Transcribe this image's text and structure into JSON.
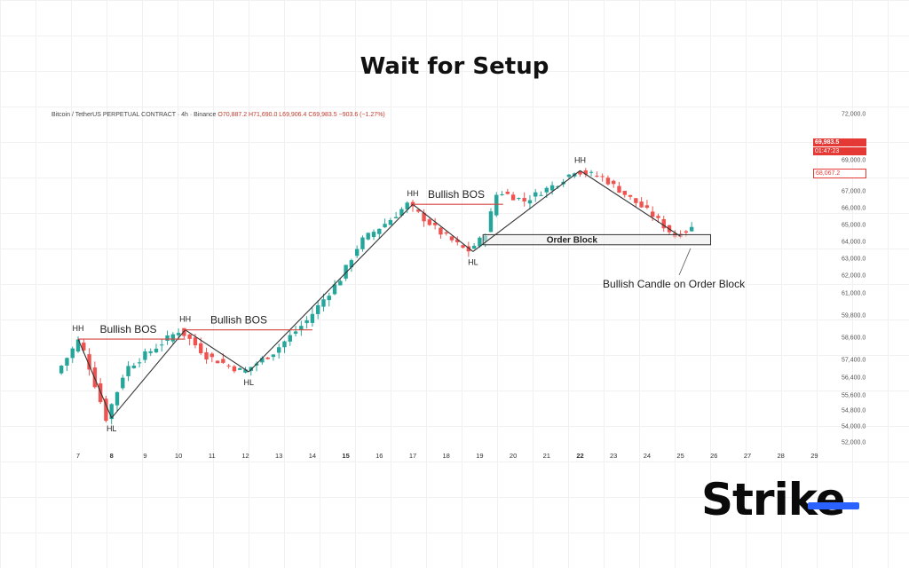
{
  "page": {
    "title": "Wait for Setup",
    "symbol_info": "Bitcoin / TetherUS PERPETUAL CONTRACT · 4h · Binance",
    "ohlc": "O70,887.2 H71,690.0 L69,906.4 C69,983.5 −903.6 (−1.27%)",
    "price_tags": {
      "last": "69,983.5",
      "countdown": "01:47:23",
      "ob": "68,067.2"
    },
    "logo": {
      "text_main": "Stri",
      "text_accent": "k",
      "text_end": "e",
      "accent_color": "#2962ff"
    }
  },
  "colors": {
    "bull": "#26a69a",
    "bear": "#ef5350",
    "line": "#333333",
    "bos": "#d64541",
    "text": "#222222"
  },
  "chart_data": {
    "type": "candlestick",
    "x_ticks": [
      {
        "label": "7",
        "day": 7,
        "bold": false
      },
      {
        "label": "8",
        "day": 8,
        "bold": true
      },
      {
        "label": "9",
        "day": 9,
        "bold": false
      },
      {
        "label": "10",
        "day": 10,
        "bold": false
      },
      {
        "label": "11",
        "day": 11,
        "bold": false
      },
      {
        "label": "12",
        "day": 12,
        "bold": false
      },
      {
        "label": "13",
        "day": 13,
        "bold": false
      },
      {
        "label": "14",
        "day": 14,
        "bold": false
      },
      {
        "label": "15",
        "day": 15,
        "bold": true
      },
      {
        "label": "16",
        "day": 16,
        "bold": false
      },
      {
        "label": "17",
        "day": 17,
        "bold": false
      },
      {
        "label": "18",
        "day": 18,
        "bold": false
      },
      {
        "label": "19",
        "day": 19,
        "bold": false
      },
      {
        "label": "20",
        "day": 20,
        "bold": false
      },
      {
        "label": "21",
        "day": 21,
        "bold": false
      },
      {
        "label": "22",
        "day": 22,
        "bold": true
      },
      {
        "label": "23",
        "day": 23,
        "bold": false
      },
      {
        "label": "24",
        "day": 24,
        "bold": false
      },
      {
        "label": "25",
        "day": 25,
        "bold": false
      },
      {
        "label": "26",
        "day": 26,
        "bold": false
      },
      {
        "label": "27",
        "day": 27,
        "bold": false
      },
      {
        "label": "28",
        "day": 28,
        "bold": false
      },
      {
        "label": "29",
        "day": 29,
        "bold": false
      }
    ],
    "y_ticks": [
      {
        "label": "72,000.0",
        "value": 72000
      },
      {
        "label": "69,000.0",
        "value": 69000
      },
      {
        "label": "67,000.0",
        "value": 67000
      },
      {
        "label": "66,000.0",
        "value": 66000
      },
      {
        "label": "65,000.0",
        "value": 65000
      },
      {
        "label": "64,000.0",
        "value": 64000
      },
      {
        "label": "63,000.0",
        "value": 63000
      },
      {
        "label": "62,000.0",
        "value": 62000
      },
      {
        "label": "61,000.0",
        "value": 61000
      },
      {
        "label": "59,800.0",
        "value": 59800
      },
      {
        "label": "58,600.0",
        "value": 58600
      },
      {
        "label": "57,400.0",
        "value": 57400
      },
      {
        "label": "56,400.0",
        "value": 56400
      },
      {
        "label": "55,600.0",
        "value": 55600
      },
      {
        "label": "54,800.0",
        "value": 54800
      },
      {
        "label": "54,000.0",
        "value": 54000
      },
      {
        "label": "52,000.0",
        "value": 52000
      }
    ],
    "price_path": [
      {
        "day": 6.5,
        "price": 56600
      },
      {
        "day": 7.2,
        "price": 58500
      },
      {
        "day": 8.0,
        "price": 54400
      },
      {
        "day": 8.6,
        "price": 56900
      },
      {
        "day": 10.2,
        "price": 59000
      },
      {
        "day": 11.0,
        "price": 57600
      },
      {
        "day": 12.1,
        "price": 56700
      },
      {
        "day": 13.0,
        "price": 57800
      },
      {
        "day": 14.0,
        "price": 59500
      },
      {
        "day": 15.0,
        "price": 61800
      },
      {
        "day": 15.6,
        "price": 64000
      },
      {
        "day": 16.5,
        "price": 65300
      },
      {
        "day": 17.0,
        "price": 66200
      },
      {
        "day": 18.0,
        "price": 64500
      },
      {
        "day": 18.8,
        "price": 63400
      },
      {
        "day": 19.3,
        "price": 64300
      },
      {
        "day": 19.7,
        "price": 67000
      },
      {
        "day": 20.5,
        "price": 66400
      },
      {
        "day": 21.5,
        "price": 67500
      },
      {
        "day": 22.0,
        "price": 68300
      },
      {
        "day": 22.8,
        "price": 67900
      },
      {
        "day": 23.5,
        "price": 66800
      },
      {
        "day": 24.3,
        "price": 65600
      },
      {
        "day": 25.0,
        "price": 64300
      },
      {
        "day": 25.5,
        "price": 64800
      }
    ],
    "structure_lines": [
      {
        "from": {
          "day": 7.0,
          "price": 58500
        },
        "to": {
          "day": 8.0,
          "price": 54400
        }
      },
      {
        "from": {
          "day": 8.0,
          "price": 54400
        },
        "to": {
          "day": 10.2,
          "price": 59000
        }
      },
      {
        "from": {
          "day": 10.2,
          "price": 59000
        },
        "to": {
          "day": 12.1,
          "price": 56700
        }
      },
      {
        "from": {
          "day": 12.1,
          "price": 56700
        },
        "to": {
          "day": 17.0,
          "price": 66200
        }
      },
      {
        "from": {
          "day": 17.0,
          "price": 66200
        },
        "to": {
          "day": 18.8,
          "price": 63400
        }
      },
      {
        "from": {
          "day": 18.8,
          "price": 63400
        },
        "to": {
          "day": 22.0,
          "price": 68300
        }
      },
      {
        "from": {
          "day": 22.0,
          "price": 68300
        },
        "to": {
          "day": 25.0,
          "price": 64300
        }
      }
    ],
    "bos_lines": [
      {
        "from": {
          "day": 7.0,
          "price": 58500
        },
        "to": {
          "day": 10.2,
          "price": 58500
        }
      },
      {
        "from": {
          "day": 10.2,
          "price": 59000
        },
        "to": {
          "day": 14.0,
          "price": 59000
        }
      },
      {
        "from": {
          "day": 17.0,
          "price": 66200
        },
        "to": {
          "day": 19.7,
          "price": 66200
        }
      }
    ],
    "order_block": {
      "from_day": 19.1,
      "to_day": 25.9,
      "low": 63800,
      "high": 64400,
      "label": "Order Block"
    },
    "labels": [
      {
        "text": "HH",
        "day": 7.0,
        "price": 58500,
        "pos": "above"
      },
      {
        "text": "HL",
        "day": 8.0,
        "price": 54400,
        "pos": "below"
      },
      {
        "text": "HH",
        "day": 10.2,
        "price": 59000,
        "pos": "above"
      },
      {
        "text": "HL",
        "day": 12.1,
        "price": 56700,
        "pos": "below"
      },
      {
        "text": "HH",
        "day": 17.0,
        "price": 66200,
        "pos": "above"
      },
      {
        "text": "HL",
        "day": 18.8,
        "price": 63400,
        "pos": "below"
      },
      {
        "text": "HH",
        "day": 22.0,
        "price": 68300,
        "pos": "above"
      },
      {
        "text": "Bullish BOS",
        "day": 8.5,
        "price": 58500,
        "pos": "above"
      },
      {
        "text": "Bullish BOS",
        "day": 11.8,
        "price": 59000,
        "pos": "above"
      },
      {
        "text": "Bullish BOS",
        "day": 18.3,
        "price": 66200,
        "pos": "above"
      }
    ],
    "annotation": {
      "text": "Bullish Candle on Order Block",
      "day": 25.3,
      "price": 63800,
      "text_day": 24.8,
      "text_price": 61500
    }
  }
}
